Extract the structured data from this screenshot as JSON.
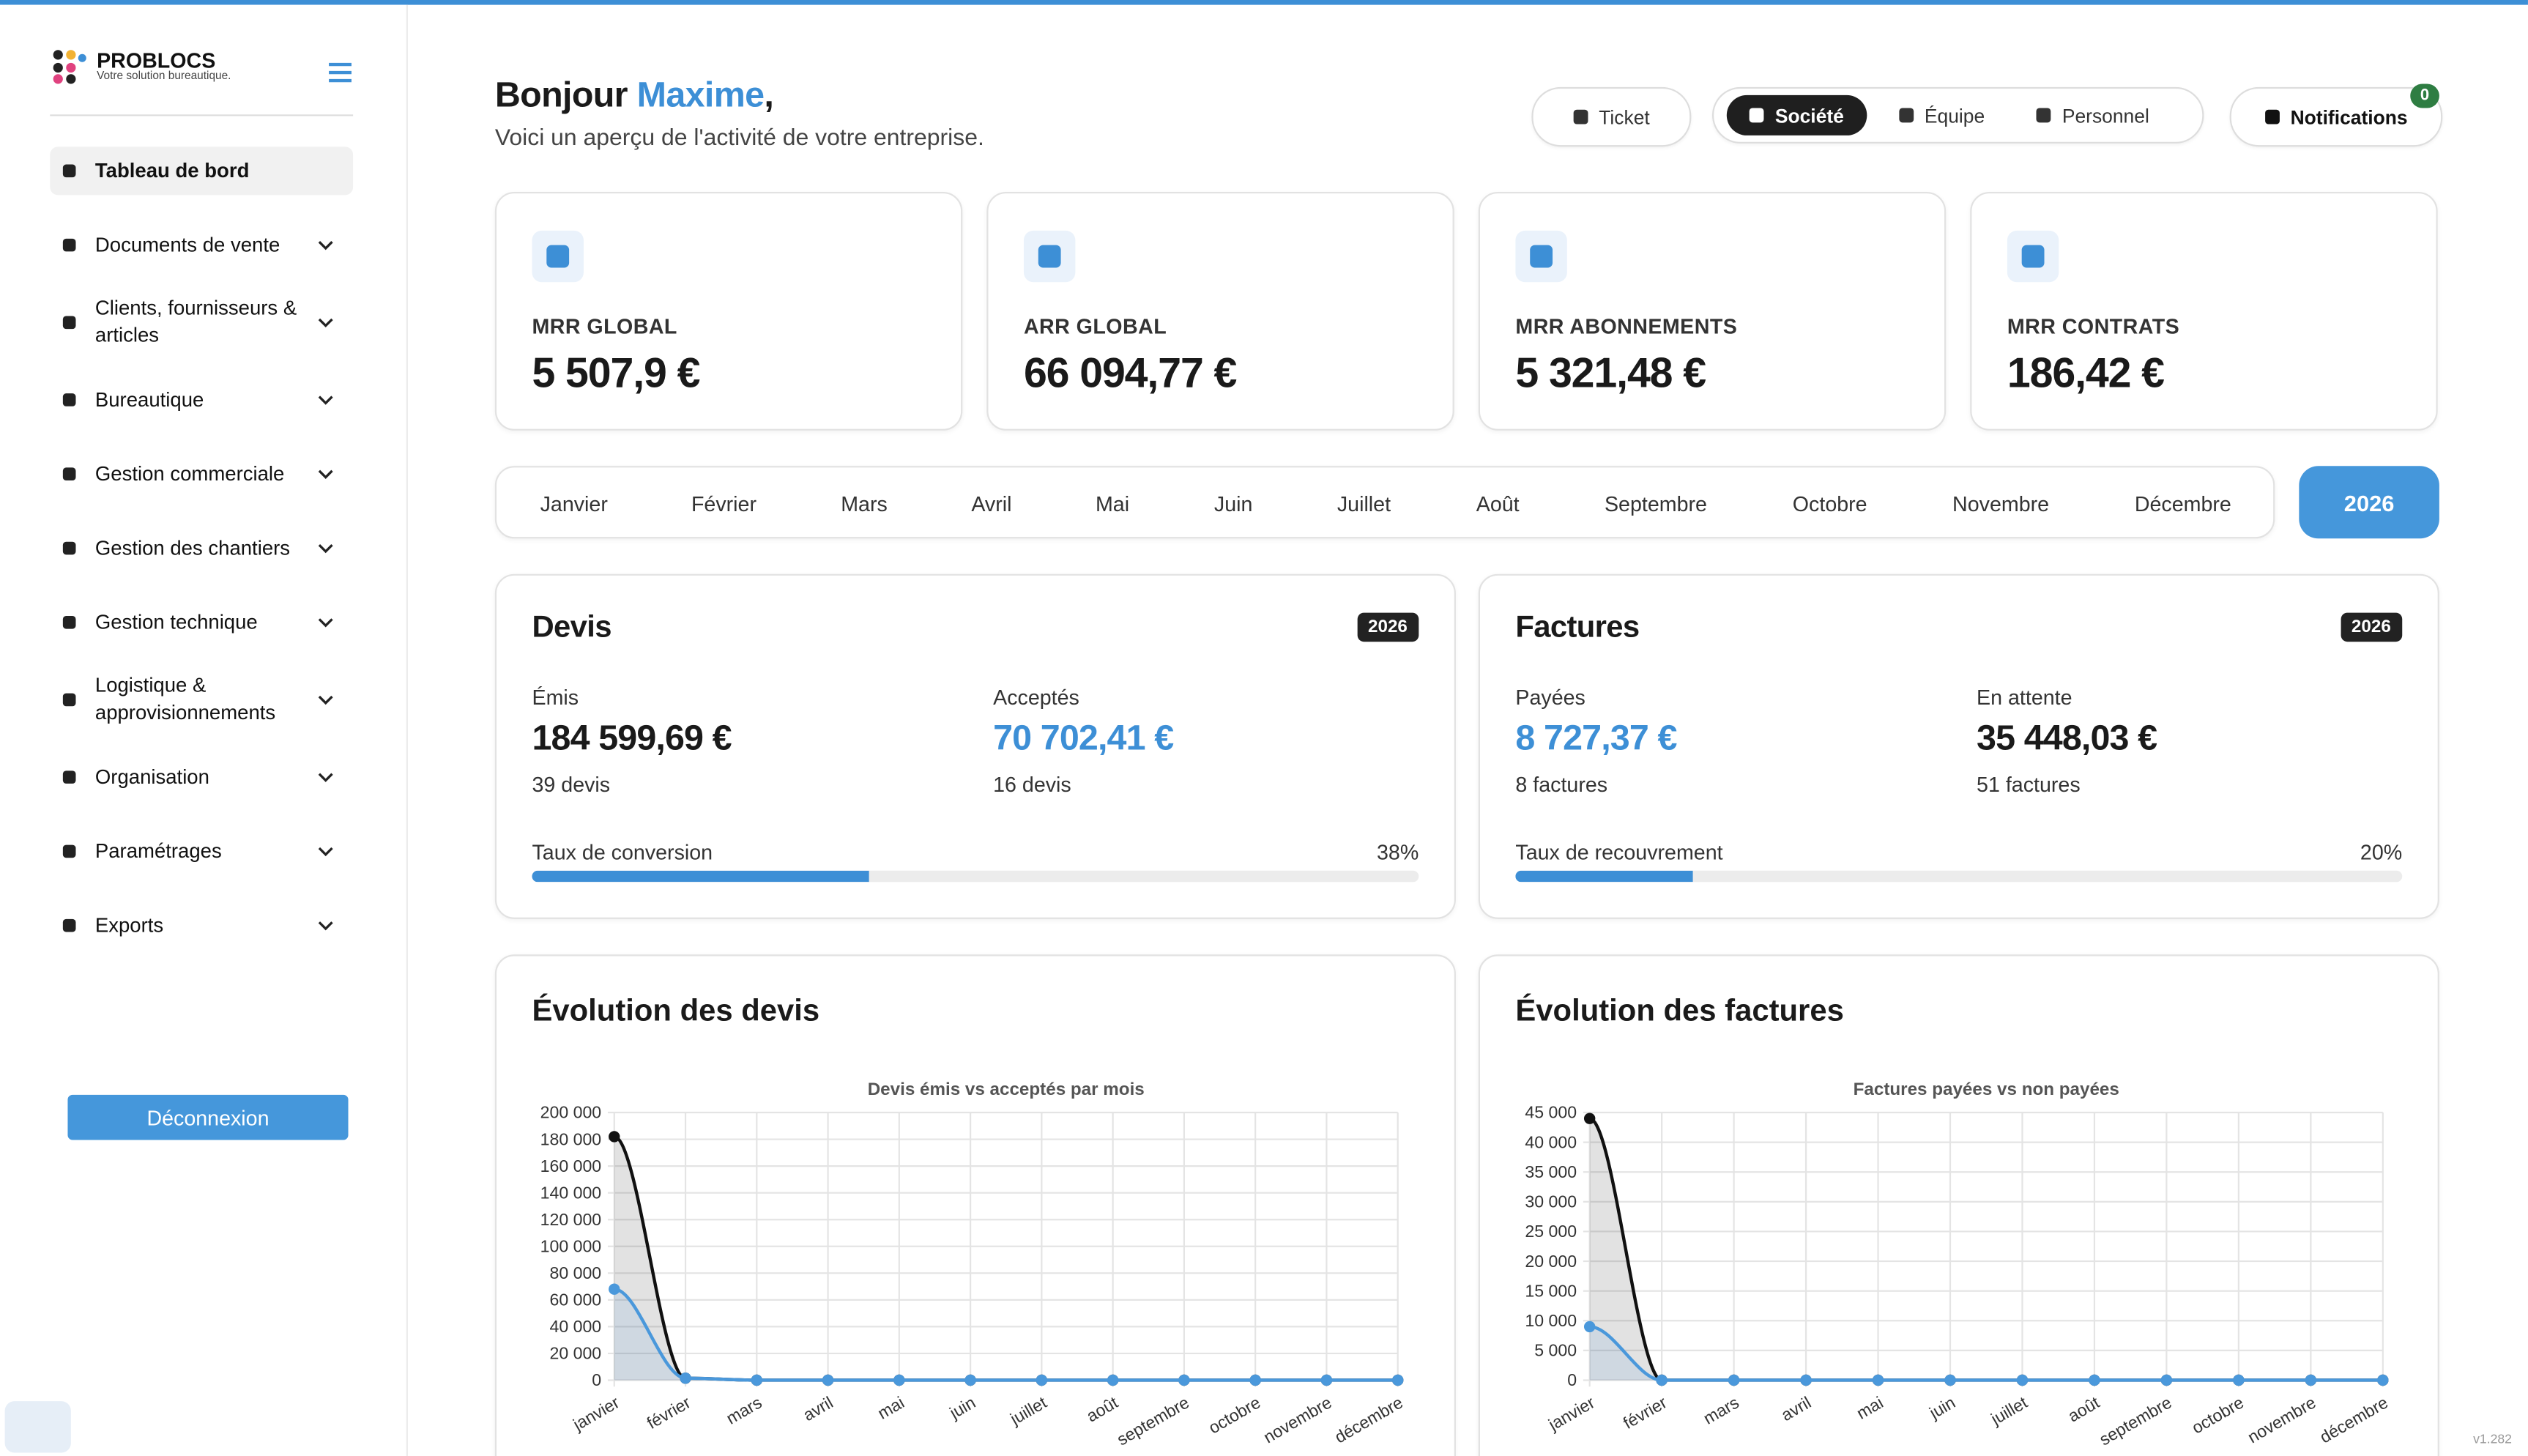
{
  "sidebar": {
    "brand": "PROBLOCS",
    "tagline": "Votre solution bureautique.",
    "menu": [
      "Tableau de bord",
      "Documents de vente",
      "Clients, fournisseurs & articles",
      "Bureautique",
      "Gestion commerciale",
      "Gestion des chantiers",
      "Gestion technique",
      "Logistique & approvisionnements",
      "Organisation",
      "Paramétrages",
      "Exports"
    ],
    "logout": "Déconnexion"
  },
  "header": {
    "greeting": "Bonjour",
    "name": "Maxime",
    "punct": ",",
    "subtitle": "Voici un aperçu de l'activité de votre entreprise.",
    "ticket": "Ticket",
    "tabs": [
      "Société",
      "Équipe",
      "Personnel"
    ],
    "notifications": "Notifications",
    "notification_count": 0
  },
  "kpis": [
    {
      "label": "MRR GLOBAL",
      "value": "5 507,9 €"
    },
    {
      "label": "ARR GLOBAL",
      "value": "66 094,77 €"
    },
    {
      "label": "MRR ABONNEMENTS",
      "value": "5 321,48 €"
    },
    {
      "label": "MRR CONTRATS",
      "value": "186,42 €"
    }
  ],
  "months": [
    "Janvier",
    "Février",
    "Mars",
    "Avril",
    "Mai",
    "Juin",
    "Juillet",
    "Août",
    "Septembre",
    "Octobre",
    "Novembre",
    "Décembre"
  ],
  "year": 2026,
  "summaries": [
    {
      "title": "Devis",
      "year": 2026,
      "left": {
        "label": "Émis",
        "value": "184 599,69 €",
        "count": "39 devis"
      },
      "right": {
        "label": "Acceptés",
        "value": "70 702,41 €",
        "count": "16 devis"
      },
      "rate_label": "Taux de conversion",
      "rate": 38,
      "rate_text": "38%"
    },
    {
      "title": "Factures",
      "year": 2026,
      "left": {
        "label": "Payées",
        "value": "8 727,37 €",
        "count": "8 factures"
      },
      "right": {
        "label": "En attente",
        "value": "35 448,03 €",
        "count": "51 factures"
      },
      "rate_label": "Taux de recouvrement",
      "rate": 20,
      "rate_text": "20%"
    }
  ],
  "charts": [
    {
      "type": "line",
      "heading": "Évolution des devis",
      "title": "Devis émis vs acceptés par mois",
      "x": [
        "janvier",
        "février",
        "mars",
        "avril",
        "mai",
        "juin",
        "juillet",
        "août",
        "septembre",
        "octobre",
        "novembre",
        "décembre"
      ],
      "series": [
        {
          "color": "#111111",
          "values": [
            182000,
            1500,
            0,
            0,
            0,
            0,
            0,
            0,
            0,
            0,
            0,
            0
          ]
        },
        {
          "color": "#4a98db",
          "values": [
            68000,
            1500,
            0,
            0,
            0,
            0,
            0,
            0,
            0,
            0,
            0,
            0
          ]
        }
      ],
      "ylim": [
        0,
        200000
      ],
      "yticks": [
        0,
        {
          "value": 20000,
          "label": "20 000"
        },
        {
          "value": 40000,
          "label": "40 000"
        },
        {
          "value": 60000,
          "label": "60 000"
        },
        {
          "value": 80000,
          "label": "80 000"
        },
        {
          "value": 100000,
          "label": "100 000"
        },
        {
          "value": 120000,
          "label": "120 000"
        },
        {
          "value": 140000,
          "label": "140 000"
        },
        {
          "value": 160000,
          "label": "160 000"
        },
        {
          "value": 180000,
          "label": "180 000"
        },
        {
          "value": 200000,
          "label": "200 000"
        }
      ],
      "grid": true
    },
    {
      "type": "line",
      "heading": "Évolution des factures",
      "title": "Factures payées vs non payées",
      "x": [
        "janvier",
        "février",
        "mars",
        "avril",
        "mai",
        "juin",
        "juillet",
        "août",
        "septembre",
        "octobre",
        "novembre",
        "décembre"
      ],
      "series": [
        {
          "color": "#111111",
          "values": [
            44000,
            0,
            0,
            0,
            0,
            0,
            0,
            0,
            0,
            0,
            0,
            0
          ]
        },
        {
          "color": "#4a98db",
          "values": [
            9000,
            0,
            0,
            0,
            0,
            0,
            0,
            0,
            0,
            0,
            0,
            0
          ]
        }
      ],
      "ylim": [
        0,
        45000
      ],
      "yticks": [
        0,
        {
          "value": 5000,
          "label": "5 000"
        },
        {
          "value": 10000,
          "label": "10 000"
        },
        {
          "value": 15000,
          "label": "15 000"
        },
        {
          "value": 20000,
          "label": "20 000"
        },
        {
          "value": 25000,
          "label": "25 000"
        },
        {
          "value": 30000,
          "label": "30 000"
        },
        {
          "value": 35000,
          "label": "35 000"
        },
        {
          "value": 40000,
          "label": "40 000"
        },
        {
          "value": 45000,
          "label": "45 000"
        }
      ],
      "grid": true
    }
  ],
  "version": "v1.282"
}
